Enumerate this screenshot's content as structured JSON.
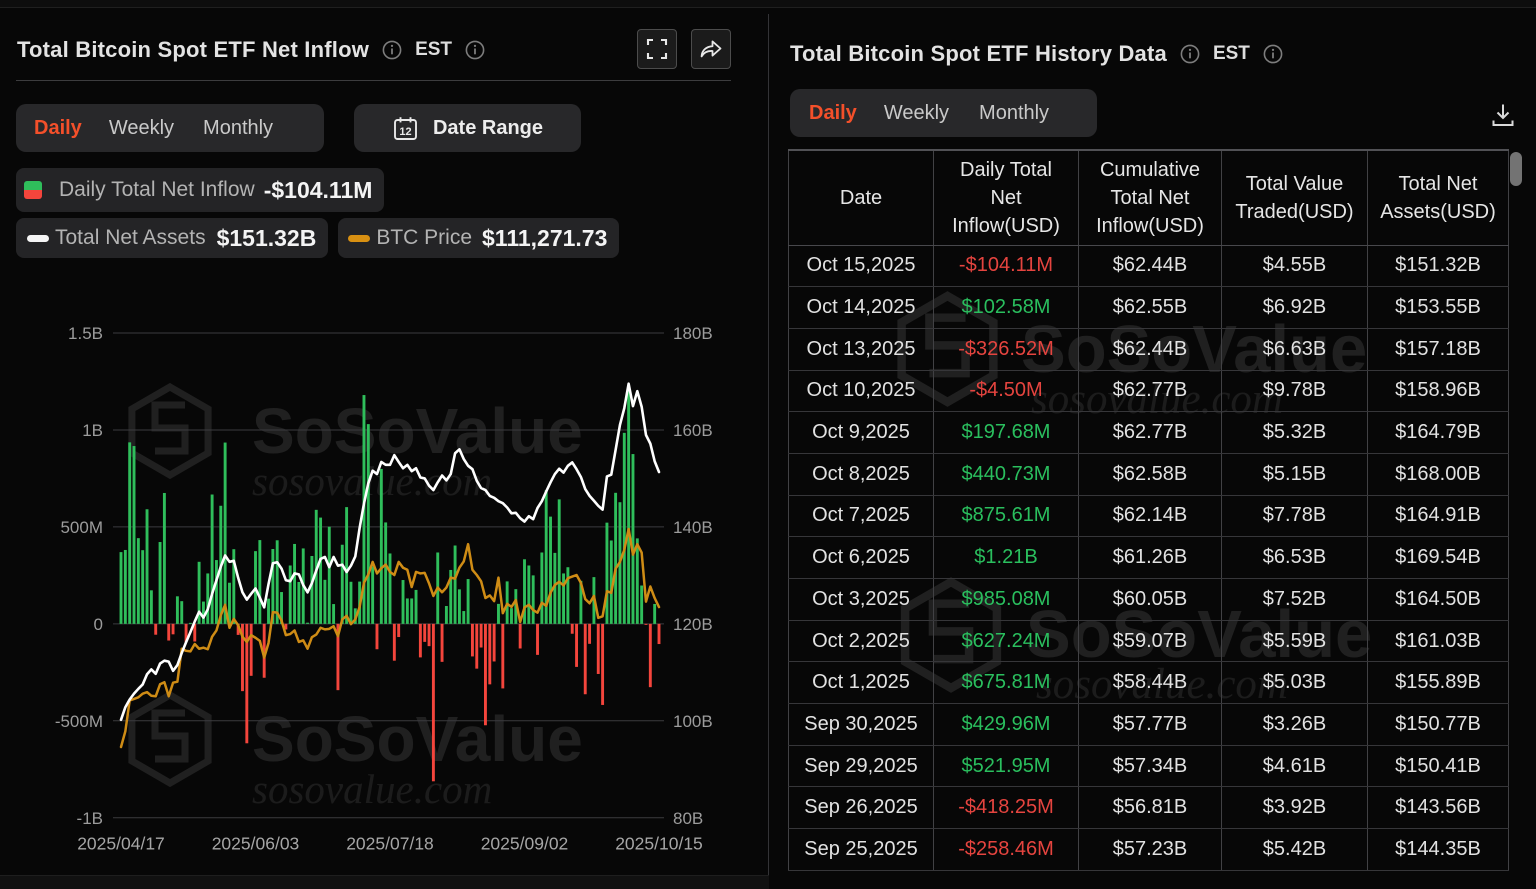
{
  "watermark": {
    "brand": "SoSoValue",
    "domain": "sosovalue.com"
  },
  "left_panel": {
    "title": "Total Bitcoin Spot ETF Net Inflow",
    "est_label": "EST",
    "tabs": [
      {
        "label": "Daily",
        "active": true
      },
      {
        "label": "Weekly",
        "active": false
      },
      {
        "label": "Monthly",
        "active": false
      }
    ],
    "date_range_label": "Date Range",
    "legend": {
      "inflow": {
        "label": "Daily Total Net Inflow",
        "value": "-$104.11M"
      },
      "assets": {
        "label": "Total Net Assets",
        "value": "$151.32B"
      },
      "btc": {
        "label": "BTC Price",
        "value": "$111,271.73"
      }
    }
  },
  "right_panel": {
    "title": "Total Bitcoin Spot ETF History Data",
    "est_label": "EST",
    "tabs": [
      {
        "label": "Daily",
        "active": true
      },
      {
        "label": "Weekly",
        "active": false
      },
      {
        "label": "Monthly",
        "active": false
      }
    ],
    "table": {
      "columns": [
        "Date",
        "Daily Total Net Inflow(USD)",
        "Cumulative Total Net Inflow(USD)",
        "Total Value Traded(USD)",
        "Total Net Assets(USD)"
      ],
      "rows": [
        {
          "date": "Oct 15,2025",
          "inflow": "-$104.11M",
          "negative": true,
          "cumulative": "$62.44B",
          "traded": "$4.55B",
          "assets": "$151.32B"
        },
        {
          "date": "Oct 14,2025",
          "inflow": "$102.58M",
          "negative": false,
          "cumulative": "$62.55B",
          "traded": "$6.92B",
          "assets": "$153.55B"
        },
        {
          "date": "Oct 13,2025",
          "inflow": "-$326.52M",
          "negative": true,
          "cumulative": "$62.44B",
          "traded": "$6.63B",
          "assets": "$157.18B"
        },
        {
          "date": "Oct 10,2025",
          "inflow": "-$4.50M",
          "negative": true,
          "cumulative": "$62.77B",
          "traded": "$9.78B",
          "assets": "$158.96B"
        },
        {
          "date": "Oct 9,2025",
          "inflow": "$197.68M",
          "negative": false,
          "cumulative": "$62.77B",
          "traded": "$5.32B",
          "assets": "$164.79B"
        },
        {
          "date": "Oct 8,2025",
          "inflow": "$440.73M",
          "negative": false,
          "cumulative": "$62.58B",
          "traded": "$5.15B",
          "assets": "$168.00B"
        },
        {
          "date": "Oct 7,2025",
          "inflow": "$875.61M",
          "negative": false,
          "cumulative": "$62.14B",
          "traded": "$7.78B",
          "assets": "$164.91B"
        },
        {
          "date": "Oct 6,2025",
          "inflow": "$1.21B",
          "negative": false,
          "cumulative": "$61.26B",
          "traded": "$6.53B",
          "assets": "$169.54B"
        },
        {
          "date": "Oct 3,2025",
          "inflow": "$985.08M",
          "negative": false,
          "cumulative": "$60.05B",
          "traded": "$7.52B",
          "assets": "$164.50B"
        },
        {
          "date": "Oct 2,2025",
          "inflow": "$627.24M",
          "negative": false,
          "cumulative": "$59.07B",
          "traded": "$5.59B",
          "assets": "$161.03B"
        },
        {
          "date": "Oct 1,2025",
          "inflow": "$675.81M",
          "negative": false,
          "cumulative": "$58.44B",
          "traded": "$5.03B",
          "assets": "$155.89B"
        },
        {
          "date": "Sep 30,2025",
          "inflow": "$429.96M",
          "negative": false,
          "cumulative": "$57.77B",
          "traded": "$3.26B",
          "assets": "$150.77B"
        },
        {
          "date": "Sep 29,2025",
          "inflow": "$521.95M",
          "negative": false,
          "cumulative": "$57.34B",
          "traded": "$4.61B",
          "assets": "$150.41B"
        },
        {
          "date": "Sep 26,2025",
          "inflow": "-$418.25M",
          "negative": true,
          "cumulative": "$56.81B",
          "traded": "$3.92B",
          "assets": "$143.56B"
        },
        {
          "date": "Sep 25,2025",
          "inflow": "-$258.46M",
          "negative": true,
          "cumulative": "$57.23B",
          "traded": "$5.42B",
          "assets": "$144.35B"
        }
      ]
    }
  },
  "chart_data": {
    "type": "bar+line combo",
    "title": "Total Bitcoin Spot ETF Net Inflow (Daily)",
    "left_axis": {
      "ticks": [
        "1.5B",
        "1B",
        "500M",
        "0",
        "-500M",
        "-1B"
      ],
      "min_musd": -1000,
      "max_musd": 1500,
      "series": "Daily Total Net Inflow (USD)"
    },
    "right_axis": {
      "ticks": [
        "180B",
        "160B",
        "140B",
        "120B",
        "100B",
        "80B"
      ],
      "min_busd": 80,
      "max_busd": 180,
      "series": "Total Net Assets (USD)"
    },
    "price_axis": {
      "hidden": true,
      "min_kusd": 70.97,
      "max_kusd": 163.69,
      "series": "BTC Price (USD)"
    },
    "x_tick_labels": [
      "2025/04/17",
      "2025/06/03",
      "2025/07/18",
      "2025/09/02",
      "2025/10/15"
    ],
    "grid": true,
    "legend_position": "top",
    "colors": {
      "bar_pos": "#2fbe5b",
      "bar_neg": "#f4453c",
      "assets_line": "#ffffff",
      "btc_line": "#cf8c15",
      "accent": "#f4502a",
      "text_green": "#2abf5e",
      "text_red": "#e5443f"
    },
    "dates": [
      "2025/04/17",
      "2025/04/21",
      "2025/04/22",
      "2025/04/23",
      "2025/04/24",
      "2025/04/25",
      "2025/04/28",
      "2025/04/29",
      "2025/04/30",
      "2025/05/01",
      "2025/05/02",
      "2025/05/05",
      "2025/05/06",
      "2025/05/07",
      "2025/05/08",
      "2025/05/09",
      "2025/05/12",
      "2025/05/13",
      "2025/05/14",
      "2025/05/15",
      "2025/05/16",
      "2025/05/19",
      "2025/05/20",
      "2025/05/21",
      "2025/05/22",
      "2025/05/23",
      "2025/05/27",
      "2025/05/28",
      "2025/05/29",
      "2025/05/30",
      "2025/06/02",
      "2025/06/03",
      "2025/06/04",
      "2025/06/05",
      "2025/06/06",
      "2025/06/09",
      "2025/06/10",
      "2025/06/11",
      "2025/06/12",
      "2025/06/13",
      "2025/06/16",
      "2025/06/17",
      "2025/06/18",
      "2025/06/20",
      "2025/06/23",
      "2025/06/24",
      "2025/06/25",
      "2025/06/26",
      "2025/06/27",
      "2025/06/30",
      "2025/07/01",
      "2025/07/02",
      "2025/07/03",
      "2025/07/07",
      "2025/07/08",
      "2025/07/09",
      "2025/07/10",
      "2025/07/11",
      "2025/07/14",
      "2025/07/15",
      "2025/07/16",
      "2025/07/17",
      "2025/07/18",
      "2025/07/21",
      "2025/07/22",
      "2025/07/23",
      "2025/07/24",
      "2025/07/25",
      "2025/07/28",
      "2025/07/29",
      "2025/07/30",
      "2025/07/31",
      "2025/08/01",
      "2025/08/04",
      "2025/08/05",
      "2025/08/06",
      "2025/08/07",
      "2025/08/08",
      "2025/08/11",
      "2025/08/12",
      "2025/08/13",
      "2025/08/14",
      "2025/08/15",
      "2025/08/18",
      "2025/08/19",
      "2025/08/20",
      "2025/08/21",
      "2025/08/22",
      "2025/08/25",
      "2025/08/26",
      "2025/08/27",
      "2025/08/28",
      "2025/08/29",
      "2025/09/02",
      "2025/09/03",
      "2025/09/04",
      "2025/09/05",
      "2025/09/08",
      "2025/09/09",
      "2025/09/10",
      "2025/09/11",
      "2025/09/12",
      "2025/09/15",
      "2025/09/16",
      "2025/09/17",
      "2025/09/18",
      "2025/09/19",
      "2025/09/22",
      "2025/09/23",
      "2025/09/24",
      "2025/09/25",
      "2025/09/26",
      "2025/09/29",
      "2025/09/30",
      "2025/10/01",
      "2025/10/02",
      "2025/10/03",
      "2025/10/06",
      "2025/10/07",
      "2025/10/08",
      "2025/10/09",
      "2025/10/10",
      "2025/10/13",
      "2025/10/14",
      "2025/10/15"
    ],
    "daily_net_inflow_musd": [
      370,
      381,
      936,
      917,
      442,
      380,
      591,
      173,
      -56,
      422,
      675,
      -86,
      -54,
      142,
      117,
      -95,
      5,
      -91,
      320,
      115,
      260,
      667,
      329,
      609,
      935,
      212,
      385,
      -57,
      -347,
      -616,
      -268,
      375,
      432,
      -278,
      130,
      386,
      431,
      164,
      -29,
      301,
      412,
      216,
      389,
      6,
      350,
      588,
      548,
      227,
      501,
      102,
      -342,
      408,
      602,
      217,
      80,
      218,
      1180,
      1030,
      297,
      -131,
      799,
      523,
      363,
      -190,
      -68,
      226,
      131,
      131,
      175,
      -173,
      -93,
      -115,
      -812,
      368,
      -196,
      92,
      278,
      404,
      178,
      66,
      231,
      -168,
      -231,
      -122,
      -523,
      -312,
      -194,
      103,
      -333,
      219,
      81,
      179,
      -127,
      333,
      301,
      250,
      -160,
      368,
      690,
      553,
      366,
      642,
      260,
      292,
      -51,
      -222,
      222,
      -363,
      -103,
      241,
      -258.46,
      -418.25,
      521.95,
      429.96,
      675.81,
      627.24,
      985.08,
      1210,
      875.61,
      440.73,
      197.68,
      -4.5,
      -326.52,
      102.58,
      -104.11
    ],
    "total_net_assets_busd": [
      100.2,
      102.8,
      104.4,
      105.6,
      106.6,
      107.5,
      109.6,
      110.6,
      109.7,
      111.8,
      112.4,
      112.2,
      110.3,
      111.5,
      114,
      116.2,
      118.3,
      120.5,
      122.5,
      121.3,
      123,
      126.2,
      129,
      131.8,
      134.1,
      132.8,
      133,
      129.5,
      126.5,
      125,
      126.2,
      127.3,
      125.4,
      123.4,
      128.2,
      132.5,
      132.7,
      131.4,
      129,
      128.8,
      130.4,
      130.2,
      128,
      126.5,
      128.4,
      131,
      133.4,
      133.8,
      131.7,
      133.8,
      132,
      132.2,
      130.7,
      132,
      133.9,
      139.8,
      144.8,
      149,
      151.6,
      150.9,
      153.4,
      152.8,
      152.8,
      154.8,
      153.4,
      152.1,
      152.8,
      151.5,
      152.1,
      150.2,
      150,
      148.5,
      147.6,
      149.2,
      150.6,
      149.6,
      150.9,
      155.2,
      156,
      154,
      152.6,
      151.9,
      149.5,
      148,
      147.6,
      146.4,
      146,
      145.3,
      144.9,
      144,
      142.8,
      142.9,
      141.8,
      141.1,
      142.2,
      141.6,
      143.9,
      145.3,
      147.3,
      149.2,
      150.9,
      152,
      151.2,
      152.6,
      153.3,
      151.9,
      150.3,
      147.8,
      146.4,
      145.4,
      144.35,
      143.56,
      150.41,
      150.77,
      155.89,
      161.03,
      164.5,
      169.54,
      164.91,
      168,
      164.79,
      158.96,
      157.18,
      153.55,
      151.32
    ],
    "btc_price_kusd": [
      84.5,
      87.5,
      93.4,
      93.7,
      94,
      94.7,
      95,
      94.3,
      94.2,
      96.5,
      96.9,
      94.2,
      96.8,
      97,
      103.3,
      102.9,
      102.8,
      104.2,
      103.3,
      103.5,
      103.2,
      105.6,
      106.8,
      109.7,
      111.7,
      107.3,
      109,
      107.8,
      105.6,
      104.6,
      105.9,
      105.4,
      104.8,
      101.6,
      104.4,
      110.3,
      110.2,
      108.7,
      105.9,
      106.1,
      106.8,
      104.6,
      104.9,
      103.3,
      105.5,
      106,
      107.3,
      107,
      107.1,
      107.6,
      105.7,
      108.9,
      109.6,
      108,
      108.9,
      111.3,
      115.9,
      117.5,
      119.9,
      117.7,
      118.7,
      119.4,
      118,
      117.4,
      119.9,
      118.8,
      118.4,
      115.1,
      118,
      117.7,
      117.8,
      115.8,
      113.4,
      115,
      114.1,
      115,
      116.9,
      116.7,
      118.8,
      120,
      123.3,
      118.4,
      117.4,
      116.2,
      113,
      113.5,
      112.4,
      116.9,
      110.1,
      111.9,
      111.3,
      112.6,
      108.4,
      111.2,
      111.7,
      110.7,
      110.2,
      112.1,
      111.5,
      114,
      115.5,
      116.1,
      115.4,
      116.8,
      117.1,
      117.4,
      115.9,
      112.8,
      112,
      113.4,
      109.2,
      109.5,
      114.3,
      114,
      118.6,
      119.9,
      122.2,
      126.2,
      121.3,
      123.3,
      121.7,
      112.3,
      115.2,
      113,
      111.27
    ]
  }
}
